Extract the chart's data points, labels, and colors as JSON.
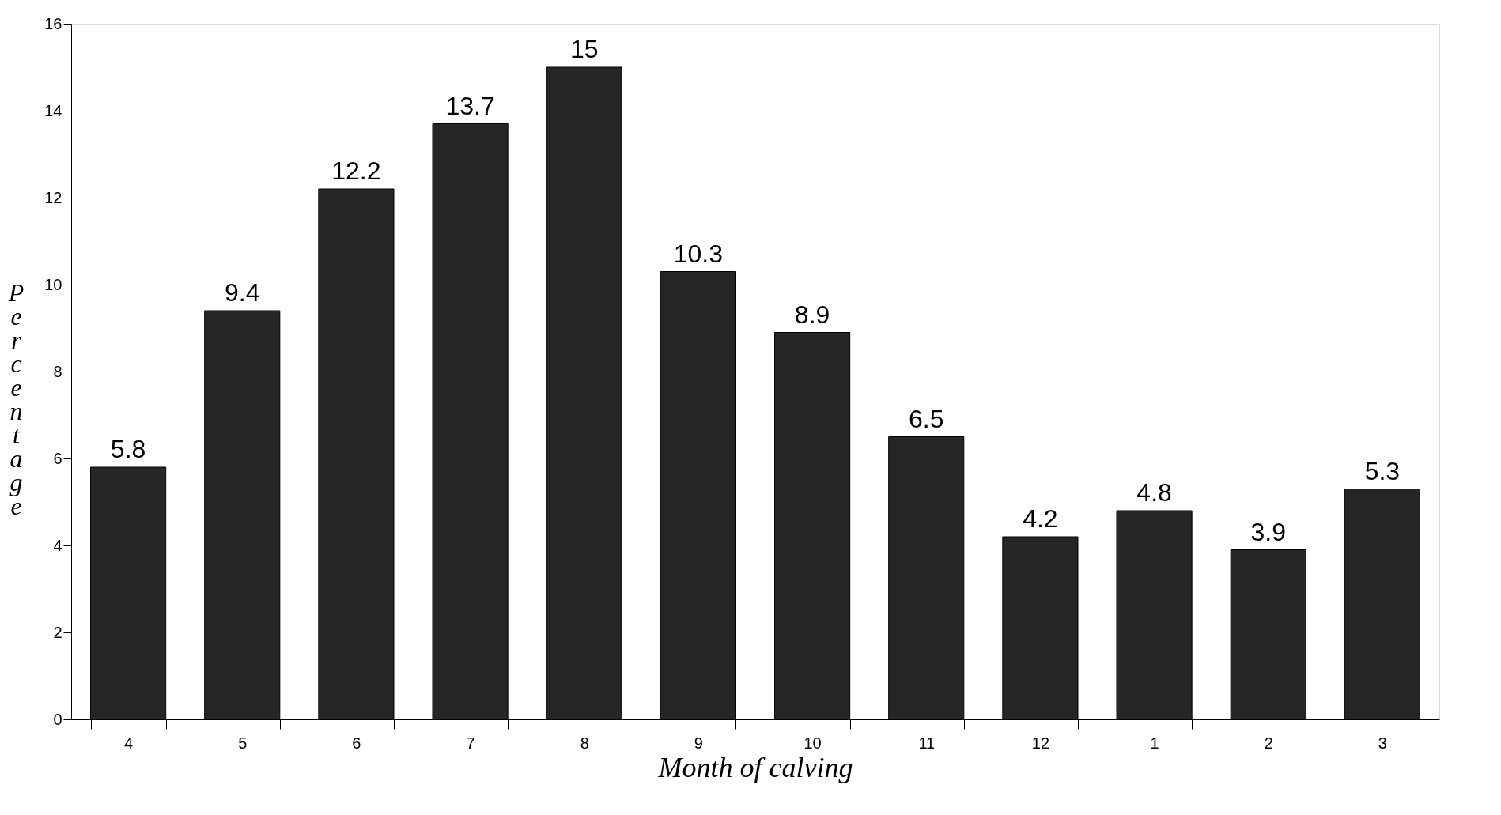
{
  "chart_data": {
    "type": "bar",
    "xlabel": "Month of calving",
    "ylabel": "Percentage",
    "categories": [
      "4",
      "5",
      "6",
      "7",
      "8",
      "9",
      "10",
      "11",
      "12",
      "1",
      "2",
      "3"
    ],
    "values": [
      5.8,
      9.4,
      12.2,
      13.7,
      15,
      10.3,
      8.9,
      6.5,
      4.2,
      4.8,
      3.9,
      5.3
    ],
    "color": "#262626",
    "ylim": [
      0,
      16
    ],
    "yticks": [
      0,
      2,
      4,
      6,
      8,
      10,
      12,
      14,
      16
    ],
    "grid": false,
    "data_labels": true
  }
}
